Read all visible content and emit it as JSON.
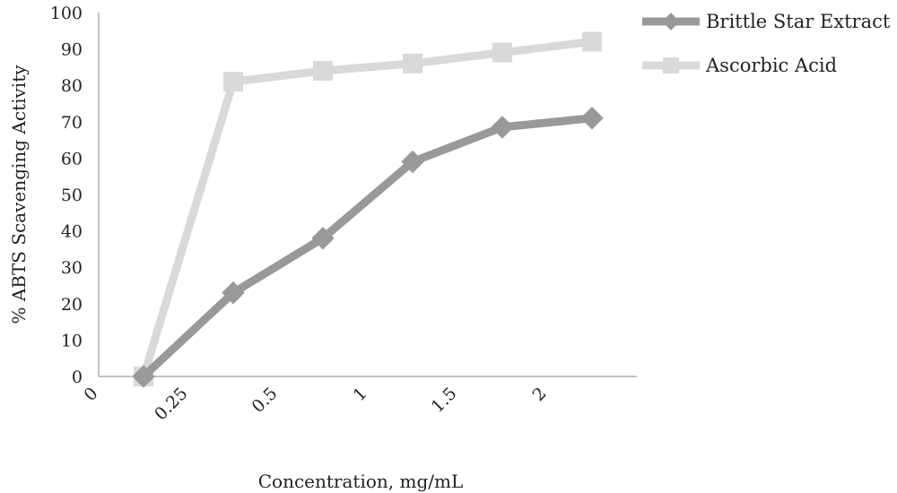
{
  "chart_data": {
    "type": "line",
    "categories": [
      "0",
      "0.25",
      "0.5",
      "1",
      "1.5",
      "2"
    ],
    "xlabel": "Concentration, mg/mL",
    "ylabel": "% ABTS Scavenging Activity",
    "ylim": [
      0,
      100
    ],
    "yticks": [
      "0",
      "10",
      "20",
      "30",
      "40",
      "50",
      "60",
      "70",
      "80",
      "90",
      "100"
    ],
    "grid": false,
    "legend_position": "top-right",
    "series": [
      {
        "name": "Brittle Star Extract",
        "values": [
          0,
          23,
          38,
          59,
          68.5,
          71
        ],
        "color": "#999999",
        "marker": "diamond"
      },
      {
        "name": "Ascorbic Acid",
        "values": [
          0,
          81,
          84,
          86,
          89,
          92
        ],
        "color": "#d9d9d9",
        "marker": "square"
      }
    ]
  }
}
